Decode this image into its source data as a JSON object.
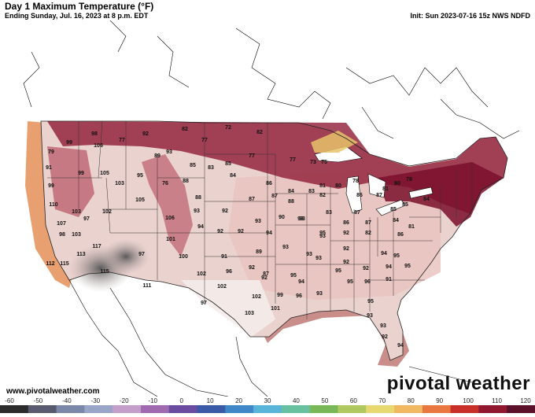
{
  "header": {
    "title": "Day 1 Maximum Temperature (°F)",
    "subtitle": "Ending Sunday, Jul. 16, 2023 at 8 p.m. EDT",
    "init": "Init: Sun 2023-07-16 15z NWS NDFD"
  },
  "footer": {
    "credit": "www.pivotalweather.com",
    "brand": "pivotal weather"
  },
  "colorbar": {
    "ticks": [
      "-60",
      "-50",
      "-40",
      "-30",
      "-20",
      "-10",
      "0",
      "10",
      "20",
      "30",
      "40",
      "50",
      "60",
      "70",
      "80",
      "90",
      "100",
      "110",
      "120"
    ],
    "colors": [
      "#2b2b2b",
      "#5a5a6e",
      "#7c88a8",
      "#9aa6c8",
      "#c4a0c8",
      "#a06ab0",
      "#6a4ca0",
      "#3a5aa8",
      "#3e88c8",
      "#58b4d8",
      "#68c0a0",
      "#78b858",
      "#b0c860",
      "#e8d870",
      "#f0b860",
      "#e87840",
      "#c83028",
      "#901830",
      "#5a1028"
    ]
  },
  "map": {
    "region": "CONUS",
    "labels": [
      {
        "t": "98"
      },
      {
        "t": "82"
      },
      {
        "t": "72"
      },
      {
        "t": "82"
      },
      {
        "t": "99"
      },
      {
        "t": "106"
      },
      {
        "t": "77"
      },
      {
        "t": "92"
      },
      {
        "t": "77"
      },
      {
        "t": "79"
      },
      {
        "t": "93"
      },
      {
        "t": "89"
      },
      {
        "t": "91"
      },
      {
        "t": "99"
      },
      {
        "t": "105"
      },
      {
        "t": "95"
      },
      {
        "t": "85"
      },
      {
        "t": "83"
      },
      {
        "t": "85"
      },
      {
        "t": "77"
      },
      {
        "t": "77"
      },
      {
        "t": "73"
      },
      {
        "t": "75"
      },
      {
        "t": "99"
      },
      {
        "t": "103"
      },
      {
        "t": "76"
      },
      {
        "t": "88"
      },
      {
        "t": "84"
      },
      {
        "t": "86"
      },
      {
        "t": "84"
      },
      {
        "t": "83"
      },
      {
        "t": "81"
      },
      {
        "t": "80"
      },
      {
        "t": "78"
      },
      {
        "t": "81"
      },
      {
        "t": "80"
      },
      {
        "t": "78"
      },
      {
        "t": "110"
      },
      {
        "t": "105"
      },
      {
        "t": "88"
      },
      {
        "t": "87"
      },
      {
        "t": "87"
      },
      {
        "t": "88"
      },
      {
        "t": "82"
      },
      {
        "t": "86"
      },
      {
        "t": "87"
      },
      {
        "t": "85"
      },
      {
        "t": "84"
      },
      {
        "t": "103"
      },
      {
        "t": "102"
      },
      {
        "t": "106"
      },
      {
        "t": "93"
      },
      {
        "t": "92"
      },
      {
        "t": "93"
      },
      {
        "t": "90"
      },
      {
        "t": "83"
      },
      {
        "t": "87"
      },
      {
        "t": "85"
      },
      {
        "t": "107"
      },
      {
        "t": "97"
      },
      {
        "t": "94"
      },
      {
        "t": "93"
      },
      {
        "t": "93"
      },
      {
        "t": "93"
      },
      {
        "t": "86"
      },
      {
        "t": "87"
      },
      {
        "t": "98"
      },
      {
        "t": "103"
      },
      {
        "t": "101"
      },
      {
        "t": "92"
      },
      {
        "t": "92"
      },
      {
        "t": "94"
      },
      {
        "t": "95"
      },
      {
        "t": "92"
      },
      {
        "t": "82"
      },
      {
        "t": "84"
      },
      {
        "t": "81"
      },
      {
        "t": "112"
      },
      {
        "t": "115"
      },
      {
        "t": "117"
      },
      {
        "t": "97"
      },
      {
        "t": "100"
      },
      {
        "t": "91"
      },
      {
        "t": "89"
      },
      {
        "t": "93"
      },
      {
        "t": "93"
      },
      {
        "t": "92"
      },
      {
        "t": "94"
      },
      {
        "t": "86"
      },
      {
        "t": "113"
      },
      {
        "t": "115"
      },
      {
        "t": "102"
      },
      {
        "t": "96"
      },
      {
        "t": "92"
      },
      {
        "t": "87"
      },
      {
        "t": "95"
      },
      {
        "t": "93"
      },
      {
        "t": "92"
      },
      {
        "t": "92"
      },
      {
        "t": "95"
      },
      {
        "t": "111"
      },
      {
        "t": "102"
      },
      {
        "t": "92"
      },
      {
        "t": "94"
      },
      {
        "t": "95"
      },
      {
        "t": "96"
      },
      {
        "t": "94"
      },
      {
        "t": "95"
      },
      {
        "t": "97"
      },
      {
        "t": "102"
      },
      {
        "t": "99"
      },
      {
        "t": "96"
      },
      {
        "t": "93"
      },
      {
        "t": "95"
      },
      {
        "t": "95"
      },
      {
        "t": "91"
      },
      {
        "t": "103"
      },
      {
        "t": "101"
      },
      {
        "t": "93"
      },
      {
        "t": "93"
      },
      {
        "t": "92"
      },
      {
        "t": "94"
      }
    ]
  }
}
